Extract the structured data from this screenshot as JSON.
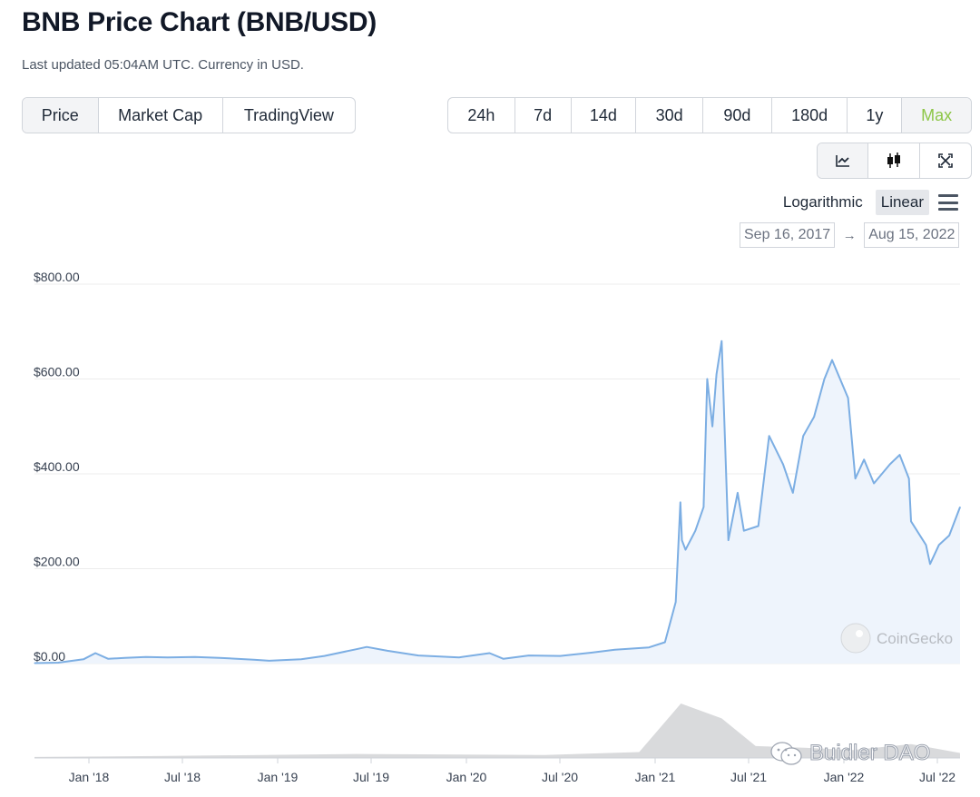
{
  "header": {
    "title": "BNB Price Chart (BNB/USD)",
    "subtitle": "Last updated 05:04AM UTC. Currency in USD."
  },
  "view_tabs": [
    {
      "label": "Price",
      "active": true
    },
    {
      "label": "Market Cap",
      "active": false
    },
    {
      "label": "TradingView",
      "active": false
    }
  ],
  "range_tabs": [
    {
      "label": "24h"
    },
    {
      "label": "7d"
    },
    {
      "label": "14d"
    },
    {
      "label": "30d"
    },
    {
      "label": "90d"
    },
    {
      "label": "180d"
    },
    {
      "label": "1y"
    },
    {
      "label": "Max",
      "active": true
    }
  ],
  "chart_type_buttons": [
    {
      "icon": "line-chart-icon",
      "active": true
    },
    {
      "icon": "candlestick-icon"
    },
    {
      "icon": "fullscreen-icon"
    }
  ],
  "scale": {
    "logarithmic_label": "Logarithmic",
    "linear_label": "Linear",
    "active": "Linear",
    "menu_icon": "hamburger-menu-icon"
  },
  "date_range": {
    "from": "Sep 16, 2017",
    "arrow": "→",
    "to": "Aug 15, 2022"
  },
  "watermark": {
    "text": "CoinGecko",
    "icon": "coingecko-logo-icon"
  },
  "credit": {
    "text": "Buidler DAO",
    "icon": "wechat-icon"
  },
  "colors": {
    "line": "#7caee3",
    "area": "#eef4fc",
    "grid": "#ececec",
    "volume": "#d9dadc",
    "accent_max": "#8dc647"
  },
  "chart_data": {
    "type": "area",
    "title": "BNB Price Chart (BNB/USD)",
    "y_ticks": [
      "$0.00",
      "$200.00",
      "$400.00",
      "$600.00",
      "$800.00"
    ],
    "ylim": [
      0,
      800
    ],
    "x_ticks": [
      "Jan '18",
      "Jul '18",
      "Jan '19",
      "Jul '19",
      "Jan '20",
      "Jul '20",
      "Jan '21",
      "Jul '21",
      "Jan '22",
      "Jul '22"
    ],
    "xlim": [
      "2017-09-16",
      "2022-08-15"
    ],
    "grid": true,
    "series": [
      {
        "x": [
          "2017-09-16",
          "2017-11-01",
          "2017-12-20",
          "2018-01-12",
          "2018-02-06",
          "2018-03-10",
          "2018-04-20",
          "2018-06-01",
          "2018-07-24",
          "2018-09-10",
          "2018-11-15",
          "2018-12-15",
          "2019-02-15",
          "2019-04-01",
          "2019-06-01",
          "2019-06-22",
          "2019-08-01",
          "2019-09-30",
          "2019-12-18",
          "2020-02-15",
          "2020-03-13",
          "2020-05-01",
          "2020-07-01",
          "2020-08-30",
          "2020-10-15",
          "2020-12-20",
          "2021-01-20",
          "2021-02-10",
          "2021-02-19",
          "2021-02-22",
          "2021-03-01",
          "2021-03-20",
          "2021-04-05",
          "2021-04-12",
          "2021-04-22",
          "2021-04-30",
          "2021-05-10",
          "2021-05-23",
          "2021-06-10",
          "2021-06-22",
          "2021-07-20",
          "2021-08-10",
          "2021-09-06",
          "2021-09-25",
          "2021-10-15",
          "2021-11-05",
          "2021-11-25",
          "2021-12-10",
          "2022-01-10",
          "2022-01-24",
          "2022-02-10",
          "2022-03-01",
          "2022-04-01",
          "2022-04-20",
          "2022-05-08",
          "2022-05-12",
          "2022-06-10",
          "2022-06-18",
          "2022-07-05",
          "2022-07-25",
          "2022-08-15"
        ],
        "y": [
          1,
          2,
          9,
          22,
          10,
          12,
          14,
          13,
          14,
          12,
          8,
          6,
          9,
          16,
          30,
          35,
          27,
          17,
          13,
          22,
          10,
          17,
          16,
          23,
          29,
          34,
          45,
          130,
          340,
          260,
          240,
          280,
          330,
          600,
          500,
          610,
          680,
          260,
          360,
          280,
          290,
          480,
          420,
          360,
          480,
          520,
          600,
          640,
          560,
          390,
          430,
          380,
          420,
          440,
          390,
          300,
          250,
          210,
          250,
          270,
          330
        ]
      }
    ],
    "volume": {
      "x": [
        "2017-09-16",
        "2018-06-01",
        "2019-06-01",
        "2020-06-01",
        "2020-12-01",
        "2021-02-20",
        "2021-05-10",
        "2021-07-15",
        "2021-11-01",
        "2022-01-20",
        "2022-05-12",
        "2022-08-15"
      ],
      "y": [
        1,
        2,
        4,
        3,
        6,
        55,
        40,
        12,
        10,
        8,
        14,
        5
      ]
    }
  }
}
